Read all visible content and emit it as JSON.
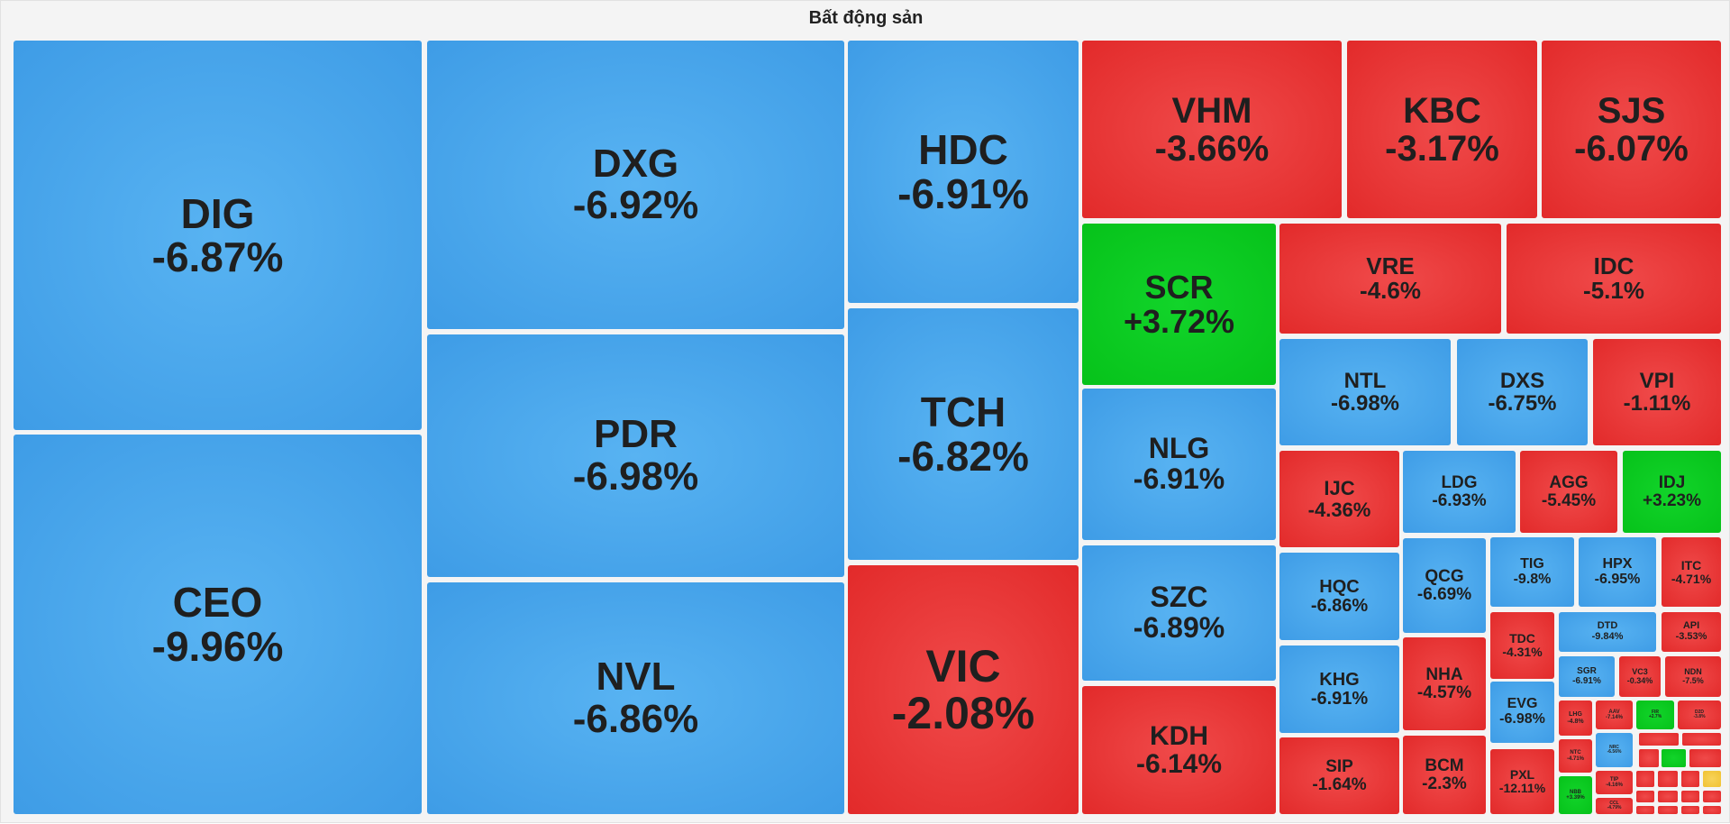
{
  "title": "Bất động sản",
  "colors": {
    "down": "#3f9fe8",
    "red": "#e53030",
    "up": "#0bc81f",
    "ref": "#f2c233"
  },
  "chart_data": {
    "type": "treemap",
    "title": "Bất động sản",
    "tiles": [
      {
        "symbol": "DIG",
        "change": "-6.87%",
        "value": -6.87,
        "color": "down"
      },
      {
        "symbol": "CEO",
        "change": "-9.96%",
        "value": -9.96,
        "color": "down"
      },
      {
        "symbol": "DXG",
        "change": "-6.92%",
        "value": -6.92,
        "color": "down"
      },
      {
        "symbol": "PDR",
        "change": "-6.98%",
        "value": -6.98,
        "color": "down"
      },
      {
        "symbol": "NVL",
        "change": "-6.86%",
        "value": -6.86,
        "color": "down"
      },
      {
        "symbol": "HDC",
        "change": "-6.91%",
        "value": -6.91,
        "color": "down"
      },
      {
        "symbol": "TCH",
        "change": "-6.82%",
        "value": -6.82,
        "color": "down"
      },
      {
        "symbol": "VIC",
        "change": "-2.08%",
        "value": -2.08,
        "color": "red"
      },
      {
        "symbol": "VHM",
        "change": "-3.66%",
        "value": -3.66,
        "color": "red"
      },
      {
        "symbol": "KBC",
        "change": "-3.17%",
        "value": -3.17,
        "color": "red"
      },
      {
        "symbol": "SJS",
        "change": "-6.07%",
        "value": -6.07,
        "color": "red"
      },
      {
        "symbol": "SCR",
        "change": "+3.72%",
        "value": 3.72,
        "color": "up"
      },
      {
        "symbol": "NLG",
        "change": "-6.91%",
        "value": -6.91,
        "color": "down"
      },
      {
        "symbol": "SZC",
        "change": "-6.89%",
        "value": -6.89,
        "color": "down"
      },
      {
        "symbol": "KDH",
        "change": "-6.14%",
        "value": -6.14,
        "color": "red"
      },
      {
        "symbol": "VRE",
        "change": "-4.6%",
        "value": -4.6,
        "color": "red"
      },
      {
        "symbol": "IDC",
        "change": "-5.1%",
        "value": -5.1,
        "color": "red"
      },
      {
        "symbol": "NTL",
        "change": "-6.98%",
        "value": -6.98,
        "color": "down"
      },
      {
        "symbol": "DXS",
        "change": "-6.75%",
        "value": -6.75,
        "color": "down"
      },
      {
        "symbol": "VPI",
        "change": "-1.11%",
        "value": -1.11,
        "color": "red"
      },
      {
        "symbol": "IJC",
        "change": "-4.36%",
        "value": -4.36,
        "color": "red"
      },
      {
        "symbol": "LDG",
        "change": "-6.93%",
        "value": -6.93,
        "color": "down"
      },
      {
        "symbol": "AGG",
        "change": "-5.45%",
        "value": -5.45,
        "color": "red"
      },
      {
        "symbol": "IDJ",
        "change": "+3.23%",
        "value": 3.23,
        "color": "up"
      },
      {
        "symbol": "HQC",
        "change": "-6.86%",
        "value": -6.86,
        "color": "down"
      },
      {
        "symbol": "QCG",
        "change": "-6.69%",
        "value": -6.69,
        "color": "down"
      },
      {
        "symbol": "TIG",
        "change": "-9.8%",
        "value": -9.8,
        "color": "down"
      },
      {
        "symbol": "HPX",
        "change": "-6.95%",
        "value": -6.95,
        "color": "down"
      },
      {
        "symbol": "ITC",
        "change": "-4.71%",
        "value": -4.71,
        "color": "red"
      },
      {
        "symbol": "KHG",
        "change": "-6.91%",
        "value": -6.91,
        "color": "down"
      },
      {
        "symbol": "NHA",
        "change": "-4.57%",
        "value": -4.57,
        "color": "red"
      },
      {
        "symbol": "TDC",
        "change": "-4.31%",
        "value": -4.31,
        "color": "red"
      },
      {
        "symbol": "DTD",
        "change": "-9.84%",
        "value": -9.84,
        "color": "down"
      },
      {
        "symbol": "API",
        "change": "-3.53%",
        "value": -3.53,
        "color": "red"
      },
      {
        "symbol": "EVG",
        "change": "-6.98%",
        "value": -6.98,
        "color": "down"
      },
      {
        "symbol": "SGR",
        "change": "-6.91%",
        "value": -6.91,
        "color": "down"
      },
      {
        "symbol": "VC3",
        "change": "-0.34%",
        "value": -0.34,
        "color": "red"
      },
      {
        "symbol": "NDN",
        "change": "-7.5%",
        "value": -7.5,
        "color": "red"
      },
      {
        "symbol": "SIP",
        "change": "-1.64%",
        "value": -1.64,
        "color": "red"
      },
      {
        "symbol": "BCM",
        "change": "-2.3%",
        "value": -2.3,
        "color": "red"
      },
      {
        "symbol": "PXL",
        "change": "-12.11%",
        "value": -12.11,
        "color": "red"
      },
      {
        "symbol": "LHG",
        "change": "-4.8%",
        "value": -4.8,
        "color": "red"
      },
      {
        "symbol": "AAV",
        "change": "-7.14%",
        "value": -7.14,
        "color": "red"
      },
      {
        "symbol": "FIR",
        "change": "+2.7%",
        "value": 2.7,
        "color": "up"
      },
      {
        "symbol": "D2D",
        "change": "-3.8%",
        "value": -3.8,
        "color": "red"
      },
      {
        "symbol": "NRC",
        "change": "-6.56%",
        "value": -6.56,
        "color": "down"
      },
      {
        "symbol": "NTC",
        "change": "-4.71%",
        "value": -4.71,
        "color": "red"
      },
      {
        "symbol": "TIP",
        "change": "-4.16%",
        "value": -4.16,
        "color": "red"
      },
      {
        "symbol": "NBB",
        "change": "+3.39%",
        "value": 3.39,
        "color": "up"
      },
      {
        "symbol": "CCL",
        "change": "-4.79%",
        "value": -4.79,
        "color": "red"
      }
    ]
  }
}
